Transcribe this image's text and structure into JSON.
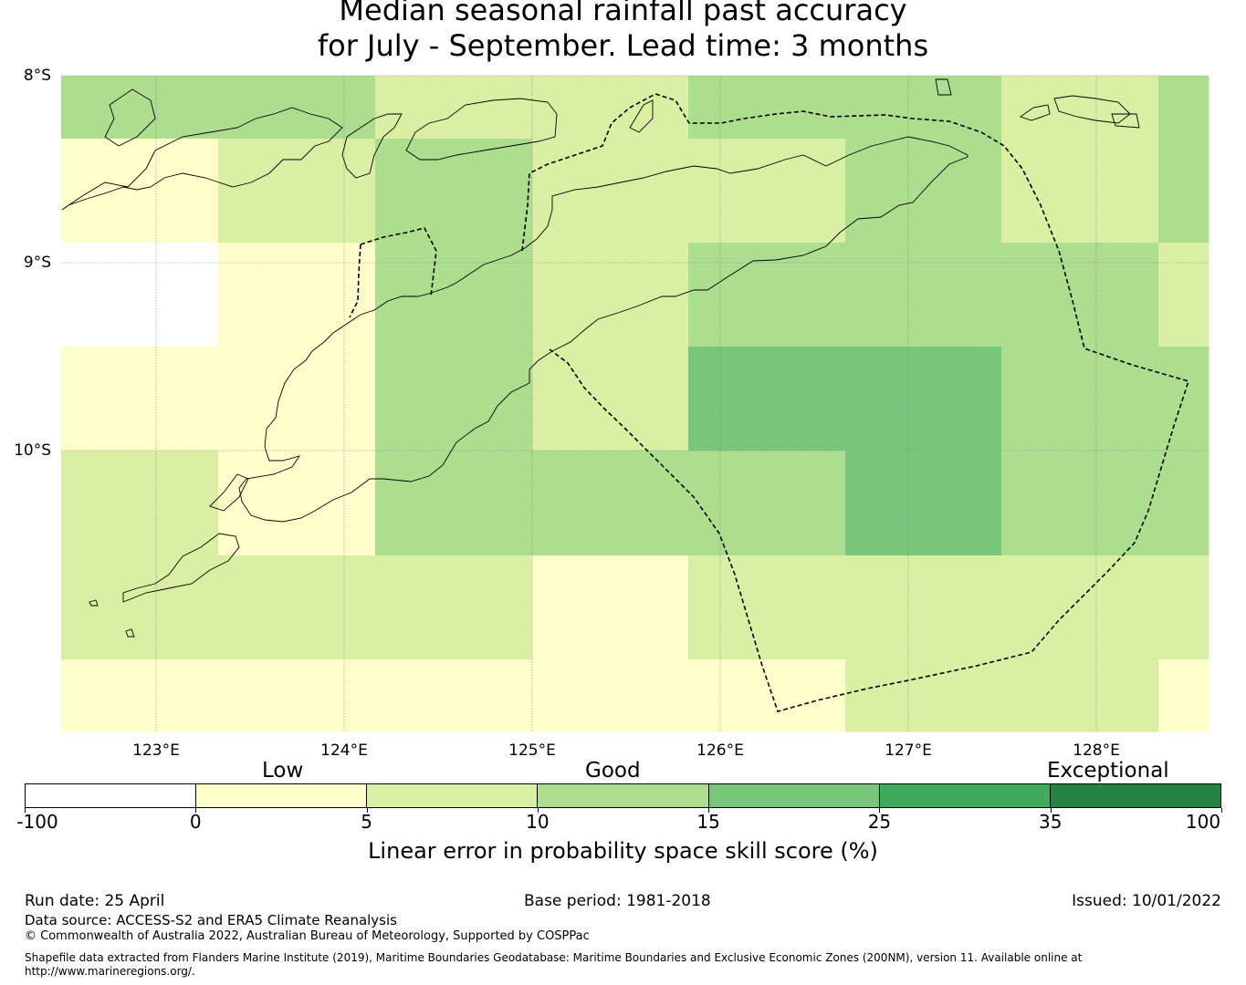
{
  "title": {
    "line1": "Median seasonal rainfall past accuracy",
    "line2": "for July - September. Lead time: 3 months"
  },
  "map": {
    "latitude_labels": [
      "8°S",
      "9°S",
      "10°S"
    ],
    "longitude_labels": [
      "123°E",
      "124°E",
      "125°E",
      "126°E",
      "127°E",
      "128°E"
    ],
    "grid_rows_skill_class": [
      [
        3,
        3,
        2,
        2,
        3,
        3,
        2,
        3
      ],
      [
        1,
        2,
        3,
        2,
        2,
        3,
        2,
        3
      ],
      [
        0,
        1,
        3,
        2,
        3,
        3,
        3,
        2
      ],
      [
        1,
        1,
        3,
        2,
        4,
        4,
        3,
        3
      ],
      [
        2,
        1,
        3,
        3,
        3,
        4,
        3,
        3
      ],
      [
        2,
        2,
        2,
        1,
        2,
        2,
        2,
        2
      ],
      [
        1,
        1,
        1,
        1,
        1,
        2,
        2,
        1
      ]
    ],
    "colors": {
      "missing": "#ffffff",
      "coastline": "#000000",
      "eez_boundary": "#000000",
      "gridline": "#888888"
    }
  },
  "legend": {
    "category_low": "Low",
    "category_good": "Good",
    "category_exceptional": "Exceptional",
    "tick_labels": [
      "-100",
      "0",
      "5",
      "10",
      "15",
      "25",
      "35",
      "100"
    ],
    "segment_colors": [
      "#ffffff",
      "#ffffcc",
      "#d9f0a3",
      "#addd8e",
      "#78c679",
      "#41ab5d",
      "#238443"
    ],
    "axis_label": "Linear error in probability space skill score (%)"
  },
  "footer": {
    "run_date": "Run date: 25 April",
    "base_period": "Base period: 1981-2018",
    "issued": "Issued: 10/01/2022",
    "data_source": "Data source: ACCESS-S2 and ERA5 Climate Reanalysis",
    "copyright": "© Commonwealth of Australia 2022, Australian Bureau of Meteorology, Supported by COSPPac",
    "shapefile": "Shapefile data extracted from Flanders Marine Institute (2019), Maritime Boundaries Geodatabase: Maritime Boundaries and Exclusive Economic Zones (200NM), version 11. Available online at http://www.marineregions.org/."
  }
}
